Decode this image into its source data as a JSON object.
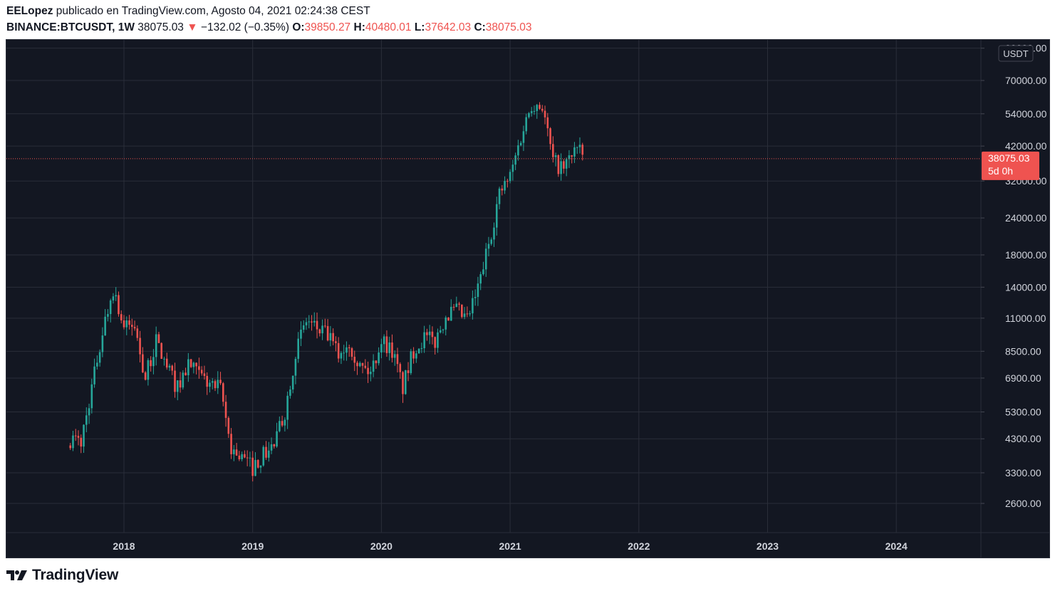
{
  "header": {
    "author": "EELopez",
    "published_text": "publicado en TradingView.com, Agosto 04, 2021 02:24:38 CEST",
    "symbol": "BINANCE:BTCUSDT, 1W",
    "last": "38075.03",
    "change": "−132.02 (−0.35%)",
    "o_label": "O:",
    "o_value": "39850.27",
    "h_label": "H:",
    "h_value": "40480.01",
    "l_label": "L:",
    "l_value": "37642.03",
    "c_label": "C:",
    "c_value": "38075.03"
  },
  "footer": {
    "logo_text": "TradingView"
  },
  "colors": {
    "up": "#26a69a",
    "down": "#ef5350",
    "background": "#131722",
    "grid": "#2a2e39",
    "axis_text": "#d1d4dc"
  },
  "chart_data": {
    "type": "candlestick",
    "scale": "log",
    "currency_label": "USDT",
    "y_ticks": [
      "90000.00",
      "70000.00",
      "54000.00",
      "42000.00",
      "32000.00",
      "24000.00",
      "18000.00",
      "14000.00",
      "11000.00",
      "8500.00",
      "6900.00",
      "5300.00",
      "4300.00",
      "3300.00",
      "2600.00"
    ],
    "x_ticks": [
      "2018",
      "2019",
      "2020",
      "2021",
      "2022",
      "2023",
      "2024"
    ],
    "last_price_label": "38075.03",
    "countdown_label": "5d 0h",
    "last_price": 38075.03,
    "series": [
      {
        "date": "2017-08",
        "close": 4300
      },
      {
        "date": "2017-09",
        "close": 4200
      },
      {
        "date": "2017-10",
        "close": 6400
      },
      {
        "date": "2017-11",
        "close": 9900
      },
      {
        "date": "2017-12",
        "close": 13900
      },
      {
        "date": "2018-01",
        "close": 10200
      },
      {
        "date": "2018-02",
        "close": 10300
      },
      {
        "date": "2018-03",
        "close": 6900
      },
      {
        "date": "2018-04",
        "close": 9200
      },
      {
        "date": "2018-05",
        "close": 7500
      },
      {
        "date": "2018-06",
        "close": 6400
      },
      {
        "date": "2018-07",
        "close": 7700
      },
      {
        "date": "2018-08",
        "close": 7000
      },
      {
        "date": "2018-09",
        "close": 6600
      },
      {
        "date": "2018-10",
        "close": 6300
      },
      {
        "date": "2018-11",
        "close": 4000
      },
      {
        "date": "2018-12",
        "close": 3700
      },
      {
        "date": "2019-01",
        "close": 3450
      },
      {
        "date": "2019-02",
        "close": 3800
      },
      {
        "date": "2019-03",
        "close": 4100
      },
      {
        "date": "2019-04",
        "close": 5300
      },
      {
        "date": "2019-05",
        "close": 8500
      },
      {
        "date": "2019-06",
        "close": 10800
      },
      {
        "date": "2019-07",
        "close": 10100
      },
      {
        "date": "2019-08",
        "close": 9600
      },
      {
        "date": "2019-09",
        "close": 8300
      },
      {
        "date": "2019-10",
        "close": 9200
      },
      {
        "date": "2019-11",
        "close": 7550
      },
      {
        "date": "2019-12",
        "close": 7200
      },
      {
        "date": "2020-01",
        "close": 9350
      },
      {
        "date": "2020-02",
        "close": 8550
      },
      {
        "date": "2020-03",
        "close": 6400
      },
      {
        "date": "2020-04",
        "close": 8600
      },
      {
        "date": "2020-05",
        "close": 9450
      },
      {
        "date": "2020-06",
        "close": 9150
      },
      {
        "date": "2020-07",
        "close": 11300
      },
      {
        "date": "2020-08",
        "close": 11650
      },
      {
        "date": "2020-09",
        "close": 10800
      },
      {
        "date": "2020-10",
        "close": 13800
      },
      {
        "date": "2020-11",
        "close": 19700
      },
      {
        "date": "2020-12",
        "close": 28900
      },
      {
        "date": "2021-01",
        "close": 33100
      },
      {
        "date": "2021-02",
        "close": 45200
      },
      {
        "date": "2021-03",
        "close": 58800
      },
      {
        "date": "2021-04",
        "close": 57700
      },
      {
        "date": "2021-05",
        "close": 37300
      },
      {
        "date": "2021-06",
        "close": 35000
      },
      {
        "date": "2021-07",
        "close": 41500
      },
      {
        "date": "2021-08",
        "close": 38075.03
      }
    ]
  }
}
